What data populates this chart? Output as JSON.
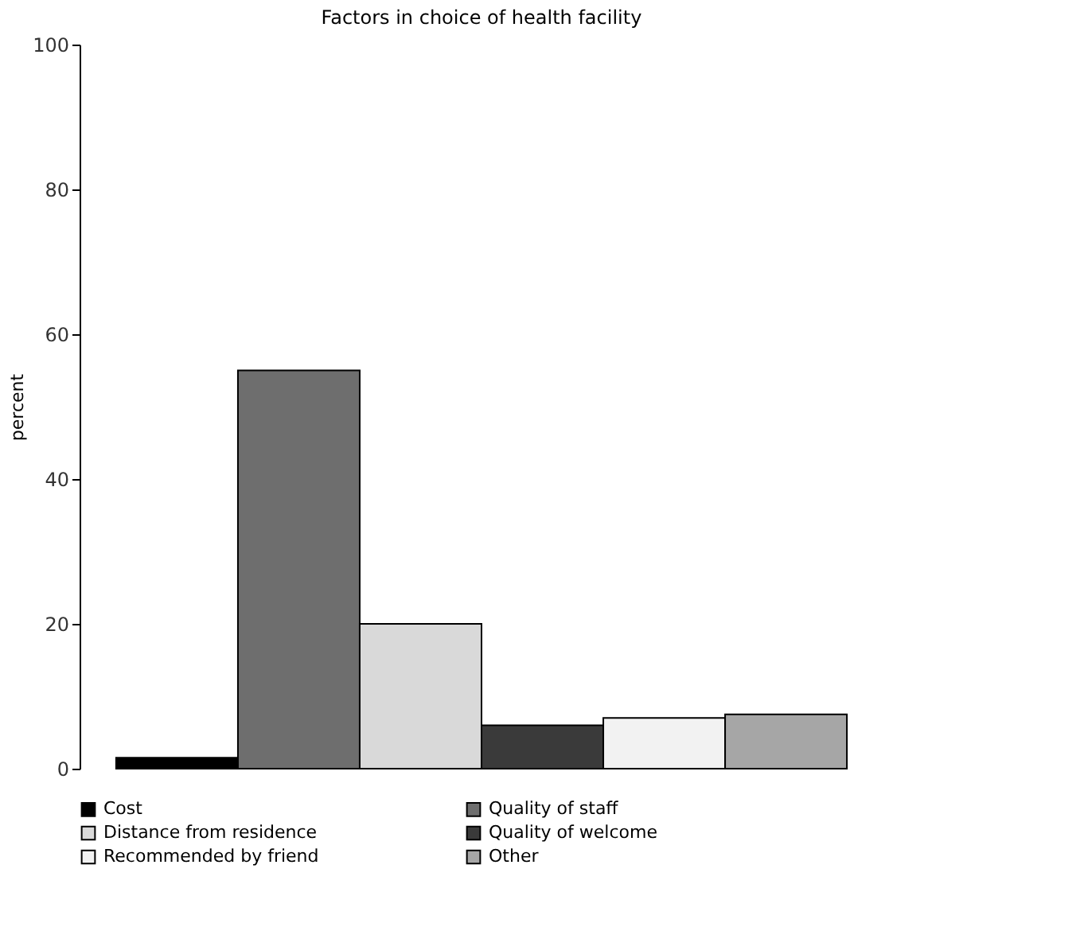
{
  "chart_data": {
    "type": "bar",
    "title": "Factors in choice of health facility",
    "ylabel": "percent",
    "categories": [
      null
    ],
    "series": [
      {
        "name": "Cost",
        "color": "#000000",
        "values": [
          1.5
        ]
      },
      {
        "name": "Quality of staff",
        "color": "#6e6e6e",
        "values": [
          55
        ]
      },
      {
        "name": "Distance from residence",
        "color": "#d9d9d9",
        "values": [
          20
        ]
      },
      {
        "name": "Quality of welcome",
        "color": "#3a3a3a",
        "values": [
          6
        ]
      },
      {
        "name": "Recommended by friend",
        "color": "#f2f2f2",
        "values": [
          7
        ]
      },
      {
        "name": "Other",
        "color": "#a6a6a6",
        "values": [
          7.5
        ]
      }
    ],
    "ylim": [
      0,
      100
    ],
    "yticks": [
      0,
      20,
      40,
      60,
      80,
      100
    ],
    "grid": false,
    "legend": "bottom",
    "tick_labels": "y"
  }
}
